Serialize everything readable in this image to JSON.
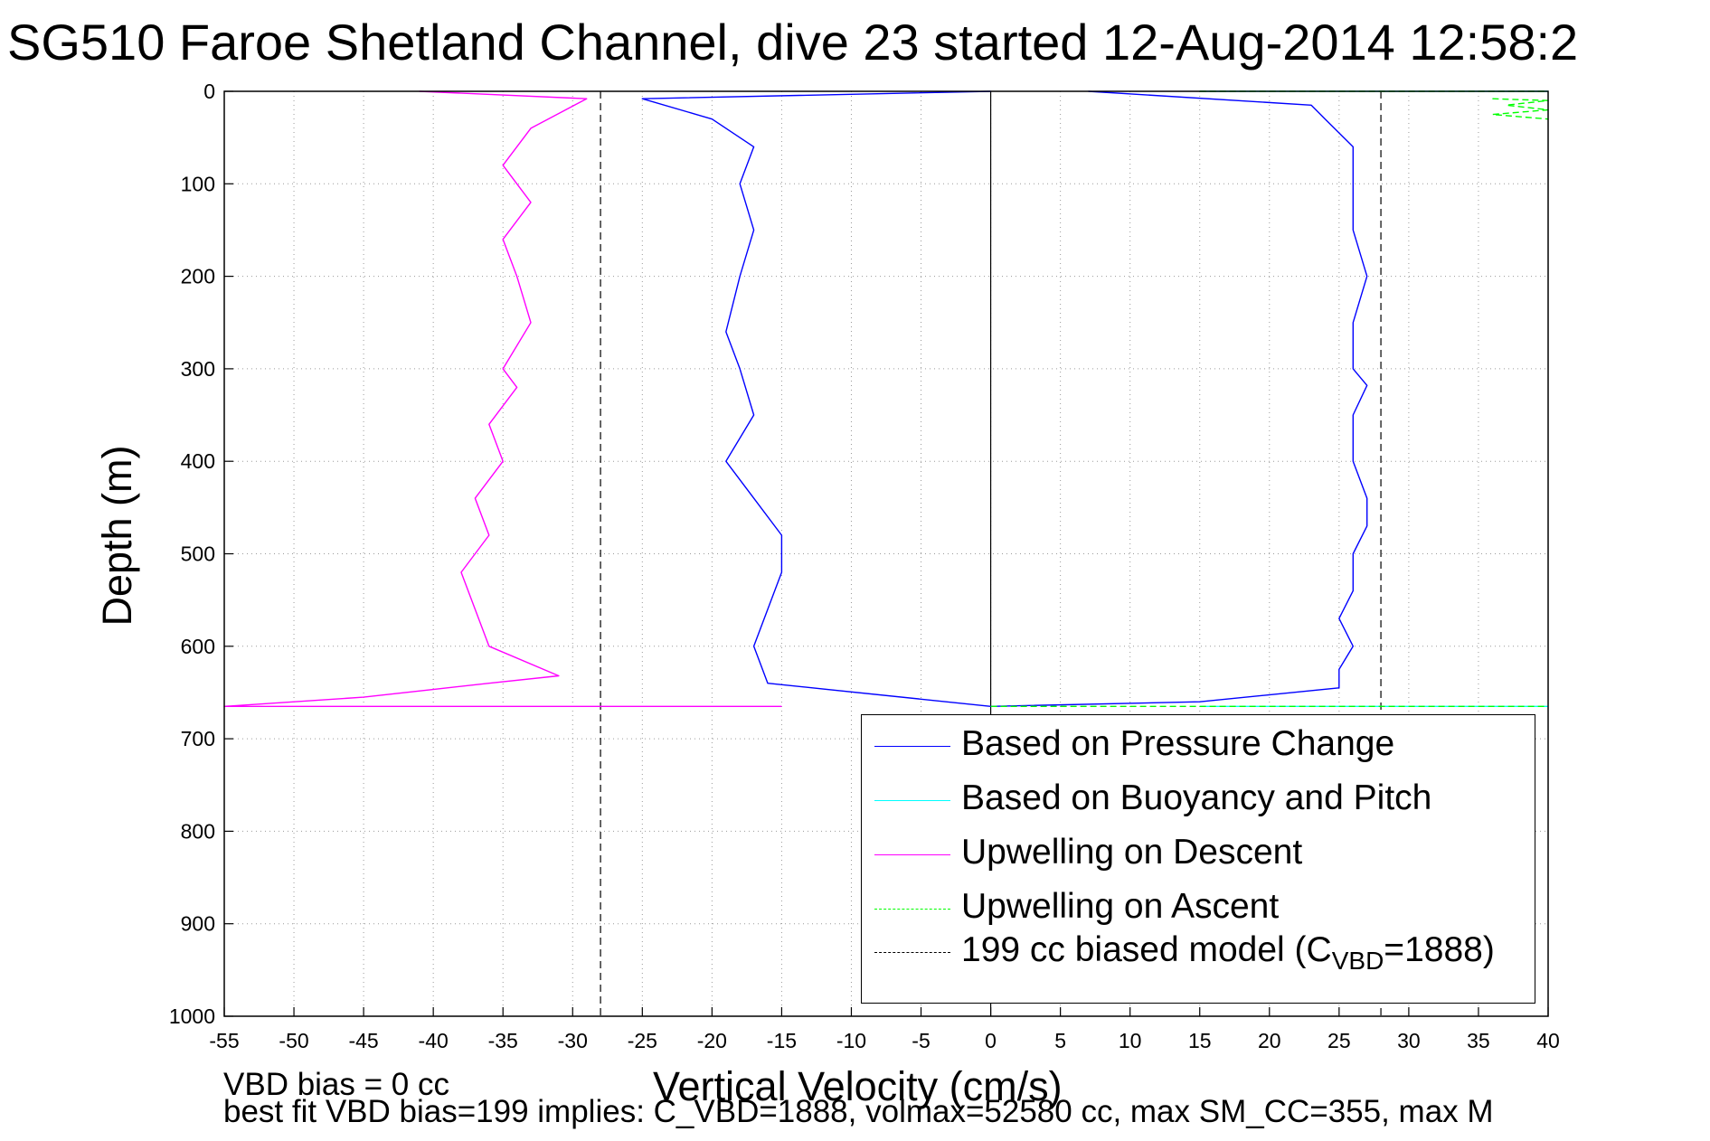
{
  "title": "SG510 Faroe Shetland Channel, dive 23 started 12-Aug-2014 12:58:2",
  "notes": {
    "line1": "VBD bias = 0 cc",
    "line2": "best fit VBD bias=199 implies: C_VBD=1888, volmax=52580 cc, max SM_CC=355, max M"
  },
  "chart_data": {
    "type": "line",
    "xlabel": "Vertical Velocity (cm/s)",
    "ylabel": "Depth (m)",
    "xlim": [
      -55,
      40
    ],
    "ylim": [
      0,
      1000
    ],
    "y_reversed": true,
    "grid": true,
    "xticks": [
      "-55",
      "-50",
      "-45",
      "-40",
      "-35",
      "-30",
      "-25",
      "-20",
      "-15",
      "-10",
      "-5",
      "0",
      "5",
      "10",
      "15",
      "20",
      "25",
      "30",
      "35",
      "40"
    ],
    "yticks": [
      "0",
      "100",
      "200",
      "300",
      "400",
      "500",
      "600",
      "700",
      "800",
      "900",
      "1000"
    ],
    "legend_position": "bottom-right",
    "reference_lines": [
      {
        "x": 0,
        "style": "solid",
        "color": "#000000"
      },
      {
        "x": -28,
        "style": "dashed",
        "color": "#000000"
      },
      {
        "x": 28,
        "style": "dashed",
        "color": "#000000"
      }
    ],
    "series": [
      {
        "name": "Based on Pressure Change",
        "color": "#0000ff",
        "style": "solid",
        "segments": [
          {
            "x": [
              0,
              -25,
              -20,
              -17,
              -18,
              -17,
              -18,
              -19,
              -18,
              -17,
              -19,
              -17,
              -15,
              -15,
              -16,
              -17,
              -16,
              0
            ],
            "y": [
              0,
              8,
              30,
              60,
              100,
              150,
              200,
              260,
              300,
              350,
              400,
              440,
              480,
              520,
              560,
              600,
              640,
              665
            ]
          },
          {
            "x": [
              7,
              23,
              24,
              26,
              26,
              26,
              27,
              26,
              26,
              27,
              26,
              26,
              27,
              27,
              26,
              26,
              25,
              26,
              25,
              25,
              25,
              15,
              0
            ],
            "y": [
              0,
              15,
              30,
              60,
              100,
              150,
              200,
              250,
              300,
              318,
              350,
              400,
              440,
              470,
              500,
              540,
              570,
              600,
              625,
              635,
              645,
              660,
              665
            ]
          }
        ]
      },
      {
        "name": "Based on Buoyancy and Pitch",
        "color": "#00ffff",
        "style": "solid",
        "segments": [
          {
            "x": [
              15,
              40
            ],
            "y": [
              0,
              0
            ]
          },
          {
            "x": [
              15,
              40
            ],
            "y": [
              665,
              665
            ]
          }
        ]
      },
      {
        "name": "Upwelling on Descent",
        "color": "#ff00ff",
        "style": "solid",
        "segments": [
          {
            "x": [
              -41,
              -29,
              -33,
              -35,
              -33,
              -35,
              -34,
              -33,
              -35,
              -34,
              -36,
              -35,
              -37,
              -36,
              -38,
              -37,
              -36,
              -31,
              -36,
              -45,
              -55,
              -15
            ],
            "y": [
              0,
              8,
              40,
              80,
              120,
              160,
              200,
              250,
              300,
              320,
              360,
              400,
              440,
              480,
              520,
              560,
              600,
              632,
              640,
              655,
              665,
              665
            ]
          }
        ]
      },
      {
        "name": "Upwelling on Ascent",
        "color": "#00ff00",
        "style": "dashed",
        "segments": [
          {
            "x": [
              15,
              40
            ],
            "y": [
              0,
              0
            ]
          },
          {
            "x": [
              36,
              40,
              37,
              40,
              36,
              40
            ],
            "y": [
              8,
              10,
              15,
              20,
              25,
              30
            ]
          },
          {
            "x": [
              0,
              40
            ],
            "y": [
              665,
              665
            ]
          }
        ]
      },
      {
        "name": "199 cc biased model",
        "label_main": "199 cc biased model (C",
        "label_sub": "VBD",
        "label_tail": "=1888)",
        "color": "#000000",
        "style": "dashed"
      }
    ]
  }
}
